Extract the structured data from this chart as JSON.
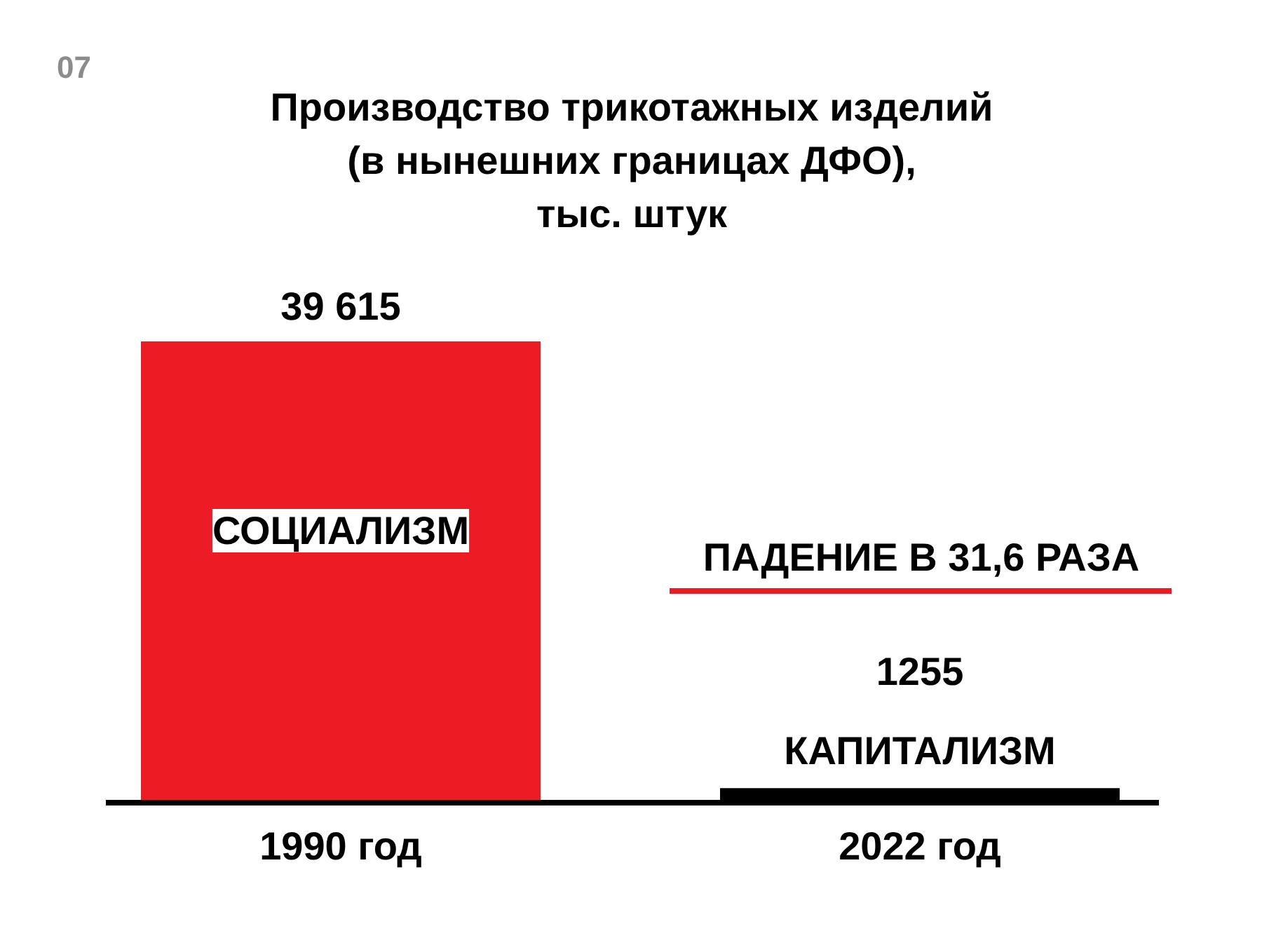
{
  "chart_data": {
    "type": "bar",
    "title": "Производство трикотажных изделий\n(в нынешних границах ДФО),\nтыс. штук",
    "categories": [
      "1990 год",
      "2022 год"
    ],
    "values": [
      39615,
      1255
    ],
    "colors": [
      "#ed1c24",
      "#000000"
    ],
    "value_labels": [
      "39 615",
      "1255"
    ],
    "annotations": [
      "07",
      "СОЦИАЛИЗМ",
      "ПАДЕНИЕ В 31,6 РАЗА",
      "КАПИТАЛИЗМ"
    ]
  }
}
